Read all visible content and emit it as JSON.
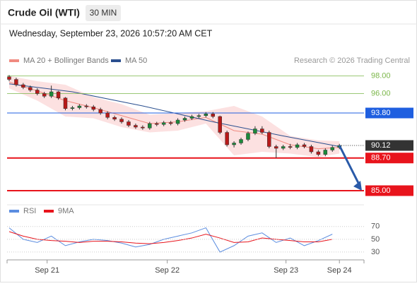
{
  "header": {
    "title": "Crude Oil (WTI)",
    "interval": "30 MIN",
    "timestamp": "Wednesday, September 23, 2026 10:57:20 AM CET"
  },
  "chart_data": [
    {
      "type": "candlestick",
      "legend": [
        {
          "name": "MA 20 + Bollinger Bands",
          "color": "#f08a80"
        },
        {
          "name": "MA 50",
          "color": "#2a4f8f"
        }
      ],
      "credit": "Research © 2026 Trading Central",
      "open": [
        97.9,
        97.6,
        97.0,
        96.7,
        96.4,
        96.0,
        95.7,
        96.2,
        95.5,
        94.3,
        94.4,
        94.6,
        94.5,
        94.2,
        93.8,
        93.3,
        93.1,
        92.8,
        92.4,
        92.2,
        92.1,
        92.6,
        92.5,
        92.7,
        92.6,
        93.0,
        93.2,
        93.4,
        93.5,
        93.7,
        93.4,
        91.6,
        90.2,
        90.4,
        90.8,
        91.5,
        92.0,
        91.6,
        90.0,
        89.8,
        90.0,
        89.9,
        90.2,
        90.0,
        89.4,
        89.1,
        89.6,
        89.9
      ],
      "close": [
        97.6,
        97.0,
        96.7,
        96.4,
        96.0,
        95.7,
        96.2,
        95.5,
        94.3,
        94.4,
        94.6,
        94.5,
        94.2,
        93.8,
        93.3,
        93.1,
        92.8,
        92.4,
        92.2,
        92.1,
        92.6,
        92.5,
        92.7,
        92.6,
        93.0,
        93.2,
        93.4,
        93.5,
        93.7,
        93.4,
        91.6,
        90.2,
        90.4,
        90.8,
        91.5,
        92.0,
        91.6,
        90.0,
        89.8,
        90.0,
        89.9,
        90.2,
        90.0,
        89.4,
        89.1,
        89.6,
        89.9,
        90.12
      ],
      "high": [
        98.1,
        97.8,
        97.2,
        96.9,
        96.6,
        96.2,
        96.9,
        96.3,
        95.6,
        94.6,
        94.8,
        94.8,
        94.7,
        94.4,
        94.0,
        93.5,
        93.3,
        93.0,
        92.6,
        92.4,
        92.8,
        92.8,
        92.9,
        92.9,
        93.2,
        93.4,
        93.6,
        93.7,
        93.9,
        93.9,
        93.5,
        91.8,
        90.6,
        91.0,
        91.7,
        92.3,
        92.3,
        91.8,
        90.2,
        90.2,
        90.3,
        90.4,
        90.4,
        90.2,
        89.6,
        89.8,
        90.1,
        90.3
      ],
      "low": [
        97.4,
        96.8,
        96.5,
        96.2,
        95.8,
        95.5,
        95.5,
        95.3,
        94.1,
        94.1,
        94.2,
        94.3,
        94.0,
        93.6,
        93.1,
        92.9,
        92.6,
        92.2,
        92.0,
        91.9,
        91.9,
        92.3,
        92.3,
        92.4,
        92.4,
        92.8,
        93.0,
        93.2,
        93.3,
        93.2,
        91.4,
        90.0,
        89.9,
        90.2,
        90.6,
        91.3,
        91.4,
        89.8,
        88.7,
        89.6,
        89.7,
        89.7,
        89.8,
        89.2,
        88.9,
        88.9,
        89.4,
        89.7
      ],
      "band_x": [
        0,
        4,
        8,
        12,
        16,
        20,
        24,
        28,
        32,
        36,
        40,
        44,
        47
      ],
      "band_upper": [
        98.0,
        97.4,
        97.0,
        95.6,
        94.8,
        93.6,
        93.8,
        94.0,
        94.6,
        93.4,
        91.2,
        90.7,
        90.6
      ],
      "band_lower": [
        96.6,
        95.2,
        93.4,
        93.2,
        92.2,
        91.6,
        91.8,
        92.6,
        89.0,
        89.4,
        89.2,
        88.8,
        89.2
      ],
      "ma20": [
        97.3,
        96.3,
        95.2,
        94.4,
        93.5,
        92.6,
        92.8,
        93.3,
        91.8,
        91.4,
        90.2,
        89.75,
        89.9
      ],
      "ma50_x": [
        0,
        9,
        19,
        29,
        39,
        47
      ],
      "ma50": [
        97.1,
        96.2,
        94.6,
        92.8,
        91.2,
        90.0
      ],
      "levels": [
        {
          "value": 98,
          "label": "98.00",
          "color": "#7ab648",
          "style": "text"
        },
        {
          "value": 96,
          "label": "96.00",
          "color": "#7ab648",
          "style": "text"
        },
        {
          "value": 93.8,
          "label": "93.80",
          "color": "#1f5fe0",
          "style": "box"
        },
        {
          "value": 90.12,
          "label": "90.12",
          "color": "#333333",
          "style": "current"
        },
        {
          "value": 88.7,
          "label": "88.70",
          "color": "#e8141c",
          "style": "box"
        },
        {
          "value": 85,
          "label": "85.00",
          "color": "#e8141c",
          "style": "box"
        }
      ],
      "arrow": [
        47,
        85
      ],
      "ylim": [
        83.6,
        99
      ],
      "xlim": [
        -0.3,
        50.5
      ],
      "xticks": [
        {
          "value": 5.4,
          "label": "Sep 21"
        },
        {
          "value": 22.5,
          "label": "Sep 22"
        },
        {
          "value": 39.4,
          "label": "Sep 23"
        },
        {
          "value": 47,
          "label": "Sep 24"
        }
      ]
    },
    {
      "type": "line",
      "x": [
        0,
        2,
        4,
        6,
        8,
        10,
        12,
        14,
        16,
        18,
        20,
        22,
        24,
        26,
        28,
        30,
        32,
        34,
        36,
        38,
        40,
        42,
        44,
        46
      ],
      "series": [
        {
          "name": "RSI",
          "color": "#5b8de0",
          "values": [
            68,
            50,
            45,
            55,
            40,
            46,
            50,
            48,
            44,
            38,
            42,
            50,
            55,
            60,
            68,
            30,
            40,
            55,
            60,
            45,
            52,
            40,
            48,
            58
          ]
        },
        {
          "name": "9MA",
          "color": "#e8141c",
          "values": [
            62,
            55,
            50,
            48,
            47,
            45,
            47,
            47,
            46,
            44,
            43,
            45,
            48,
            52,
            58,
            52,
            45,
            46,
            52,
            50,
            48,
            46,
            46,
            50
          ]
        }
      ],
      "ylim": [
        10,
        93
      ],
      "yticks": [
        30,
        50,
        70
      ],
      "xlim": [
        -0.3,
        50.5
      ]
    }
  ]
}
